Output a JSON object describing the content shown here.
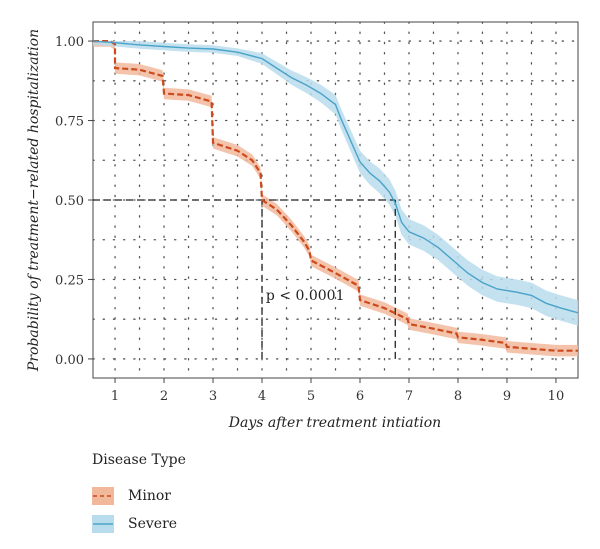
{
  "chart_data": {
    "type": "line",
    "ylabel": "Probability of treatment−related hospitalization",
    "xlabel": "Days after treatment intiation",
    "xlim": [
      0.55,
      10.45
    ],
    "ylim": [
      -0.06,
      1.06
    ],
    "xticks": [
      1,
      2,
      3,
      4,
      5,
      6,
      7,
      8,
      9,
      10
    ],
    "yticks": [
      0.0,
      0.25,
      0.5,
      0.75,
      1.0
    ],
    "ytick_labels": [
      "0.00",
      "0.25",
      "0.50",
      "0.75",
      "1.00"
    ],
    "grid": true,
    "annotation": {
      "text": "p < 0.0001",
      "x": 4.08,
      "y": 0.185
    },
    "reference_lines": [
      {
        "y": 0.5,
        "x_from": 0.55,
        "x_to": 6.72
      },
      {
        "x": 4.0,
        "y_from": 0.0,
        "y_to": 0.5
      },
      {
        "x": 6.72,
        "y_from": 0.0,
        "y_to": 0.5
      }
    ],
    "legend": {
      "title": "Disease Type",
      "placement": "bottom-left"
    },
    "series": [
      {
        "name": "Minor",
        "color": "#cc4a1c",
        "fill": "#f2b89c",
        "style": "dashed",
        "points": [
          [
            0.55,
            1.0
          ],
          [
            0.9,
            1.0
          ],
          [
            1.0,
            0.99
          ],
          [
            1.0,
            0.915
          ],
          [
            1.5,
            0.91
          ],
          [
            1.97,
            0.89
          ],
          [
            2.0,
            0.835
          ],
          [
            2.5,
            0.83
          ],
          [
            2.97,
            0.81
          ],
          [
            3.0,
            0.68
          ],
          [
            3.5,
            0.655
          ],
          [
            3.8,
            0.625
          ],
          [
            3.97,
            0.585
          ],
          [
            4.0,
            0.5
          ],
          [
            4.3,
            0.47
          ],
          [
            4.6,
            0.42
          ],
          [
            4.85,
            0.37
          ],
          [
            4.97,
            0.34
          ],
          [
            5.0,
            0.31
          ],
          [
            5.5,
            0.27
          ],
          [
            5.97,
            0.23
          ],
          [
            6.0,
            0.185
          ],
          [
            6.5,
            0.16
          ],
          [
            6.97,
            0.125
          ],
          [
            7.0,
            0.11
          ],
          [
            7.5,
            0.095
          ],
          [
            7.97,
            0.08
          ],
          [
            8.0,
            0.068
          ],
          [
            8.5,
            0.06
          ],
          [
            8.97,
            0.05
          ],
          [
            9.0,
            0.038
          ],
          [
            9.5,
            0.032
          ],
          [
            10.0,
            0.026
          ],
          [
            10.45,
            0.026
          ]
        ],
        "band": 0.018
      },
      {
        "name": "Severe",
        "color": "#4aa3c8",
        "fill": "#b8dcec",
        "style": "solid",
        "points": [
          [
            0.55,
            1.0
          ],
          [
            1.0,
            0.995
          ],
          [
            1.5,
            0.988
          ],
          [
            2.0,
            0.983
          ],
          [
            2.5,
            0.978
          ],
          [
            3.0,
            0.975
          ],
          [
            3.5,
            0.965
          ],
          [
            4.0,
            0.945
          ],
          [
            4.3,
            0.915
          ],
          [
            4.6,
            0.885
          ],
          [
            4.9,
            0.862
          ],
          [
            5.2,
            0.835
          ],
          [
            5.5,
            0.8
          ],
          [
            5.6,
            0.76
          ],
          [
            5.8,
            0.69
          ],
          [
            6.0,
            0.62
          ],
          [
            6.2,
            0.585
          ],
          [
            6.4,
            0.56
          ],
          [
            6.6,
            0.525
          ],
          [
            6.72,
            0.49
          ],
          [
            6.85,
            0.43
          ],
          [
            7.0,
            0.4
          ],
          [
            7.3,
            0.38
          ],
          [
            7.6,
            0.35
          ],
          [
            7.9,
            0.31
          ],
          [
            8.2,
            0.27
          ],
          [
            8.5,
            0.24
          ],
          [
            8.8,
            0.22
          ],
          [
            9.2,
            0.21
          ],
          [
            9.5,
            0.2
          ],
          [
            9.8,
            0.175
          ],
          [
            10.1,
            0.16
          ],
          [
            10.45,
            0.145
          ]
        ],
        "band_inner": 0.012,
        "band_outer": 0.04
      }
    ]
  },
  "legend": {
    "title": "Disease Type",
    "items": [
      {
        "label": "Minor",
        "line_color": "#cc4a1c",
        "fill": "#f2b89c",
        "dash": true
      },
      {
        "label": "Severe",
        "line_color": "#4aa3c8",
        "fill": "#b8dcec",
        "dash": false
      }
    ]
  }
}
